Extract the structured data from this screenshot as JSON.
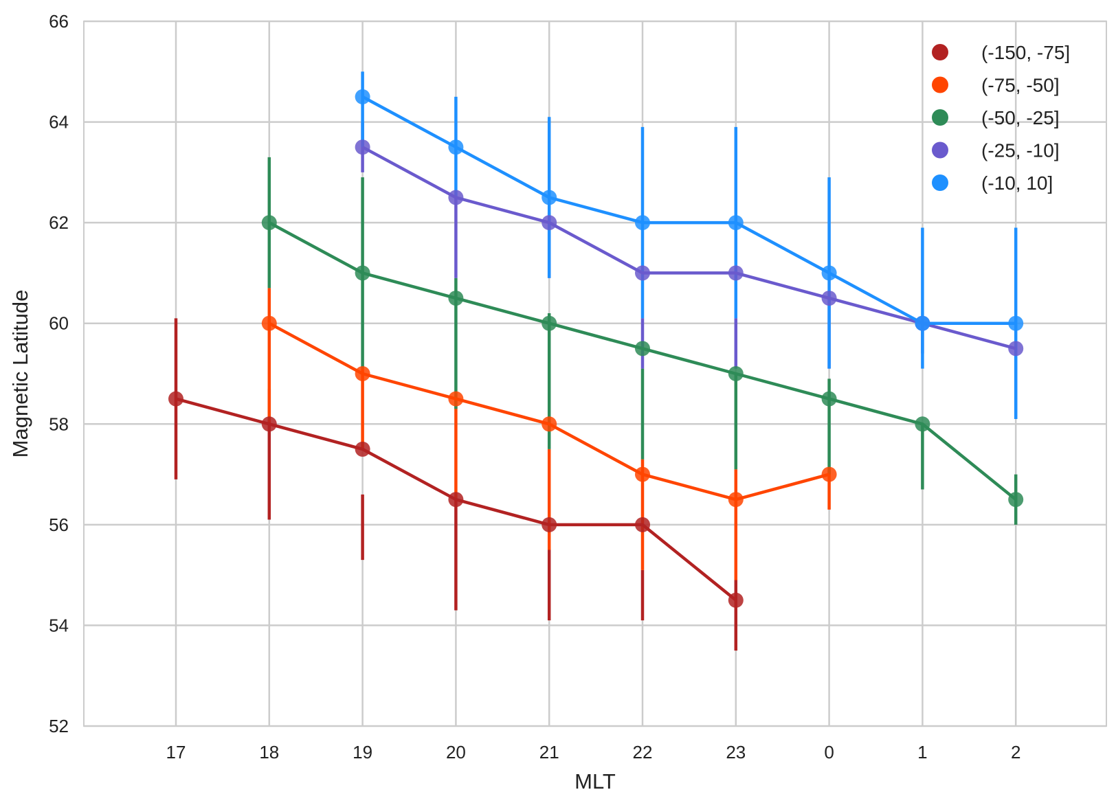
{
  "chart_data": {
    "type": "line",
    "title": "",
    "xlabel": "MLT",
    "ylabel": "Magnetic Latitude",
    "categories": [
      "17",
      "18",
      "19",
      "20",
      "21",
      "22",
      "23",
      "0",
      "1",
      "2"
    ],
    "y_ticks": [
      "52",
      "54",
      "56",
      "58",
      "60",
      "62",
      "64",
      "66"
    ],
    "ylim": [
      52,
      66
    ],
    "grid": true,
    "legend_position": "top-right",
    "error_bars": true,
    "series": [
      {
        "name": "(-150, -75]",
        "color": "#b22222",
        "values": [
          58.5,
          58.0,
          57.5,
          56.5,
          56.0,
          56.0,
          54.5,
          null,
          null,
          null
        ],
        "err_low": [
          56.9,
          56.1,
          55.3,
          54.3,
          54.1,
          54.1,
          53.5,
          null,
          null,
          null
        ],
        "err_high": [
          60.1,
          58.7,
          56.6,
          56.5,
          55.5,
          55.1,
          54.9,
          null,
          null,
          null
        ]
      },
      {
        "name": "(-75, -50]",
        "color": "#ff4500",
        "values": [
          null,
          60.0,
          59.0,
          58.5,
          58.0,
          57.0,
          56.5,
          57.0,
          null,
          null
        ],
        "err_low": [
          null,
          58.0,
          57.5,
          56.5,
          55.5,
          55.1,
          54.9,
          56.3,
          null,
          null
        ],
        "err_high": [
          null,
          60.7,
          59.1,
          58.5,
          57.5,
          57.3,
          57.1,
          57.1,
          null,
          null
        ]
      },
      {
        "name": "(-50, -25]",
        "color": "#2e8b57",
        "values": [
          null,
          62.0,
          61.0,
          60.5,
          60.0,
          59.5,
          59.0,
          58.5,
          58.0,
          56.5
        ],
        "err_low": [
          null,
          60.7,
          59.1,
          58.3,
          57.5,
          57.3,
          57.1,
          57.0,
          56.7,
          56.0
        ],
        "err_high": [
          null,
          63.3,
          62.9,
          60.9,
          60.2,
          59.1,
          59.0,
          58.9,
          58.0,
          57.0
        ]
      },
      {
        "name": "(-25, -10]",
        "color": "#6a5acd",
        "values": [
          null,
          null,
          63.5,
          62.5,
          62.0,
          61.0,
          61.0,
          60.5,
          60.0,
          59.5
        ],
        "err_low": [
          null,
          null,
          63.0,
          60.9,
          60.9,
          59.1,
          59.1,
          59.1,
          59.4,
          58.1
        ],
        "err_high": [
          null,
          null,
          64.0,
          62.5,
          62.2,
          60.1,
          60.1,
          60.5,
          60.0,
          59.5
        ]
      },
      {
        "name": "(-10, 10]",
        "color": "#1e90ff",
        "values": [
          null,
          null,
          64.5,
          63.5,
          62.5,
          62.0,
          62.0,
          61.0,
          60.0,
          60.0
        ],
        "err_low": [
          null,
          null,
          63.5,
          62.5,
          60.9,
          60.1,
          60.1,
          59.1,
          59.1,
          58.1
        ],
        "err_high": [
          null,
          null,
          65.0,
          64.5,
          64.1,
          63.9,
          63.9,
          62.9,
          61.9,
          61.9
        ]
      }
    ]
  }
}
